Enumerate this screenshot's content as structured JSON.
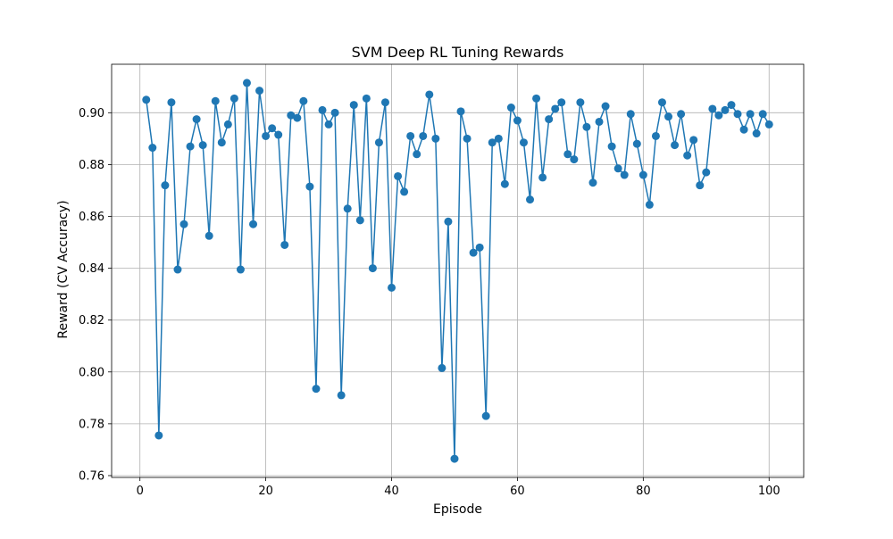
{
  "chart_data": {
    "type": "line",
    "title": "SVM Deep RL Tuning Rewards",
    "xlabel": "Episode",
    "ylabel": "Reward (CV Accuracy)",
    "xlim": [
      -4.5,
      105.5
    ],
    "ylim": [
      0.7593,
      0.9187
    ],
    "xticks": [
      0,
      20,
      40,
      60,
      80,
      100
    ],
    "yticks": [
      0.76,
      0.78,
      0.8,
      0.82,
      0.84,
      0.86,
      0.88,
      0.9
    ],
    "grid": true,
    "markers": true,
    "line_color": "#1f77b4",
    "series": [
      {
        "x": [
          1,
          2,
          3,
          4,
          5,
          6,
          7,
          8,
          9,
          10,
          11,
          12,
          13,
          14,
          15,
          16,
          17,
          18,
          19,
          20,
          21,
          22,
          23,
          24,
          25,
          26,
          27,
          28,
          29,
          30,
          31,
          32,
          33,
          34,
          35,
          36,
          37,
          38,
          39,
          40,
          41,
          42,
          43,
          44,
          45,
          46,
          47,
          48,
          49,
          50,
          51,
          52,
          53,
          54,
          55,
          56,
          57,
          58,
          59,
          60,
          61,
          62,
          63,
          64,
          65,
          66,
          67,
          68,
          69,
          70,
          71,
          72,
          73,
          74,
          75,
          76,
          77,
          78,
          79,
          80,
          81,
          82,
          83,
          84,
          85,
          86,
          87,
          88,
          89,
          90,
          91,
          92,
          93,
          94,
          95,
          96,
          97,
          98,
          99,
          100
        ],
        "y": [
          0.905,
          0.8865,
          0.7755,
          0.872,
          0.904,
          0.8395,
          0.857,
          0.887,
          0.8975,
          0.8875,
          0.8525,
          0.9045,
          0.8885,
          0.8955,
          0.9055,
          0.8395,
          0.9115,
          0.857,
          0.9085,
          0.891,
          0.894,
          0.8915,
          0.849,
          0.899,
          0.898,
          0.9045,
          0.8715,
          0.7935,
          0.901,
          0.8955,
          0.9,
          0.791,
          0.863,
          0.903,
          0.8585,
          0.9055,
          0.84,
          0.8885,
          0.904,
          0.8325,
          0.8755,
          0.8695,
          0.891,
          0.884,
          0.891,
          0.907,
          0.89,
          0.8015,
          0.858,
          0.7665,
          0.9005,
          0.89,
          0.846,
          0.848,
          0.783,
          0.8885,
          0.89,
          0.8725,
          0.902,
          0.897,
          0.8885,
          0.8665,
          0.9055,
          0.875,
          0.8975,
          0.9015,
          0.904,
          0.884,
          0.882,
          0.904,
          0.8945,
          0.873,
          0.8965,
          0.9025,
          0.887,
          0.8785,
          0.876,
          0.8995,
          0.888,
          0.876,
          0.8645,
          0.891,
          0.904,
          0.8985,
          0.8875,
          0.8995,
          0.8835,
          0.8895,
          0.872,
          0.877,
          0.9015,
          0.899,
          0.901,
          0.903,
          0.8995,
          0.8935,
          0.8995,
          0.892,
          0.8995,
          0.8955
        ]
      }
    ]
  }
}
